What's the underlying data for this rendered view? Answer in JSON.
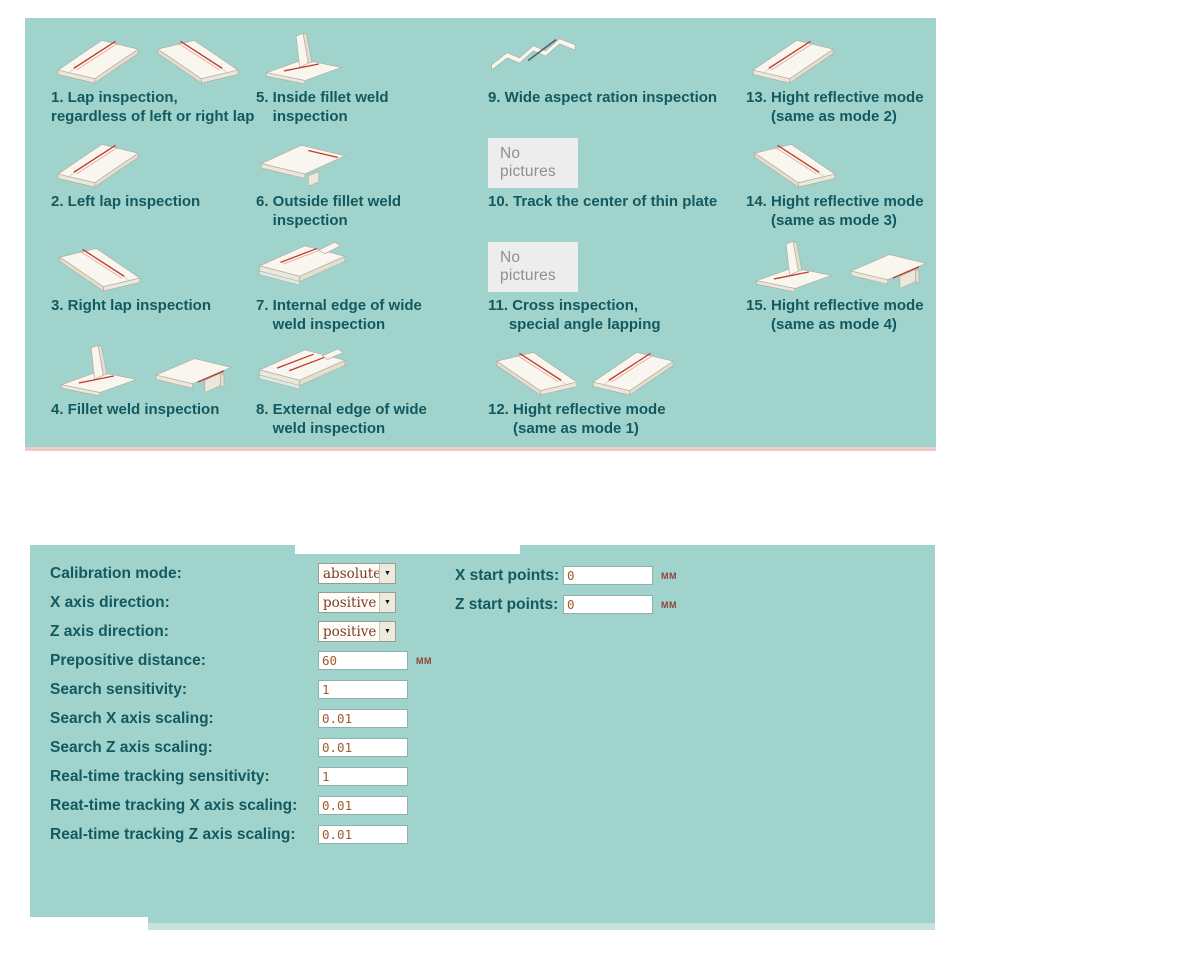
{
  "colors": {
    "panel_teal": "#9fd3cc",
    "label_teal": "#14595f",
    "seam_red": "#c23b2e",
    "value_brown": "#a05a2c",
    "trim_pink": "#eccac5"
  },
  "no_pictures_label": "No pictures",
  "modes": [
    {
      "label": "1. Lap inspection,\nregardless of left or right lap",
      "icons": [
        "lap-l",
        "lap-r"
      ]
    },
    {
      "label": "2. Left lap inspection",
      "icons": [
        "lap-l"
      ]
    },
    {
      "label": "3. Right lap inspection",
      "icons": [
        "lap-r"
      ]
    },
    {
      "label": "4. Fillet weld inspection",
      "icons": [
        "tee",
        "corner"
      ]
    },
    {
      "label": "5. Inside fillet weld\n    inspection",
      "icons": [
        "tee"
      ]
    },
    {
      "label": "6. Outside fillet weld\n    inspection",
      "icons": [
        "corner-out"
      ]
    },
    {
      "label": "7. Internal edge of wide\n    weld inspection",
      "icons": [
        "wide-int"
      ]
    },
    {
      "label": "8. External edge of wide\n    weld inspection",
      "icons": [
        "wide-ext"
      ]
    },
    {
      "label": "9. Wide aspect ration inspection",
      "icons": [
        "corrugated"
      ]
    },
    {
      "label": "10. Track the center of thin plate",
      "icons": [
        "no-pictures"
      ]
    },
    {
      "label": "11. Cross inspection,\n     special angle lapping",
      "icons": [
        "no-pictures"
      ]
    },
    {
      "label": "12. Hight reflective mode\n      (same as mode 1)",
      "icons": [
        "lap-r",
        "lap-l"
      ]
    },
    {
      "label": "13. Hight reflective mode\n      (same as mode 2)",
      "icons": [
        "lap-l"
      ]
    },
    {
      "label": "14. Hight reflective mode\n      (same as mode 3)",
      "icons": [
        "lap-r"
      ]
    },
    {
      "label": "15. Hight reflective mode\n      (same as mode 4)",
      "icons": [
        "tee",
        "corner"
      ]
    }
  ],
  "form": {
    "left": [
      {
        "label": "Calibration mode:",
        "type": "select",
        "value": "absolute"
      },
      {
        "label": "X axis direction:",
        "type": "select",
        "value": "positive"
      },
      {
        "label": "Z axis direction:",
        "type": "select",
        "value": "positive"
      },
      {
        "label": "Prepositive distance:",
        "type": "input",
        "value": "60",
        "unit": "MM"
      },
      {
        "label": "Search sensitivity:",
        "type": "input",
        "value": "1"
      },
      {
        "label": "Search X axis scaling:",
        "type": "input",
        "value": "0.01"
      },
      {
        "label": "Search Z axis scaling:",
        "type": "input",
        "value": "0.01"
      },
      {
        "label": "Real-time tracking sensitivity:",
        "type": "input",
        "value": "1"
      },
      {
        "label": "Reat-time tracking X axis scaling:",
        "type": "input",
        "value": "0.01"
      },
      {
        "label": "Real-time tracking Z axis scaling:",
        "type": "input",
        "value": "0.01"
      }
    ],
    "right": [
      {
        "label": "X start points:",
        "value": "0",
        "unit": "MM"
      },
      {
        "label": "Z start points:",
        "value": "0",
        "unit": "MM"
      }
    ]
  }
}
